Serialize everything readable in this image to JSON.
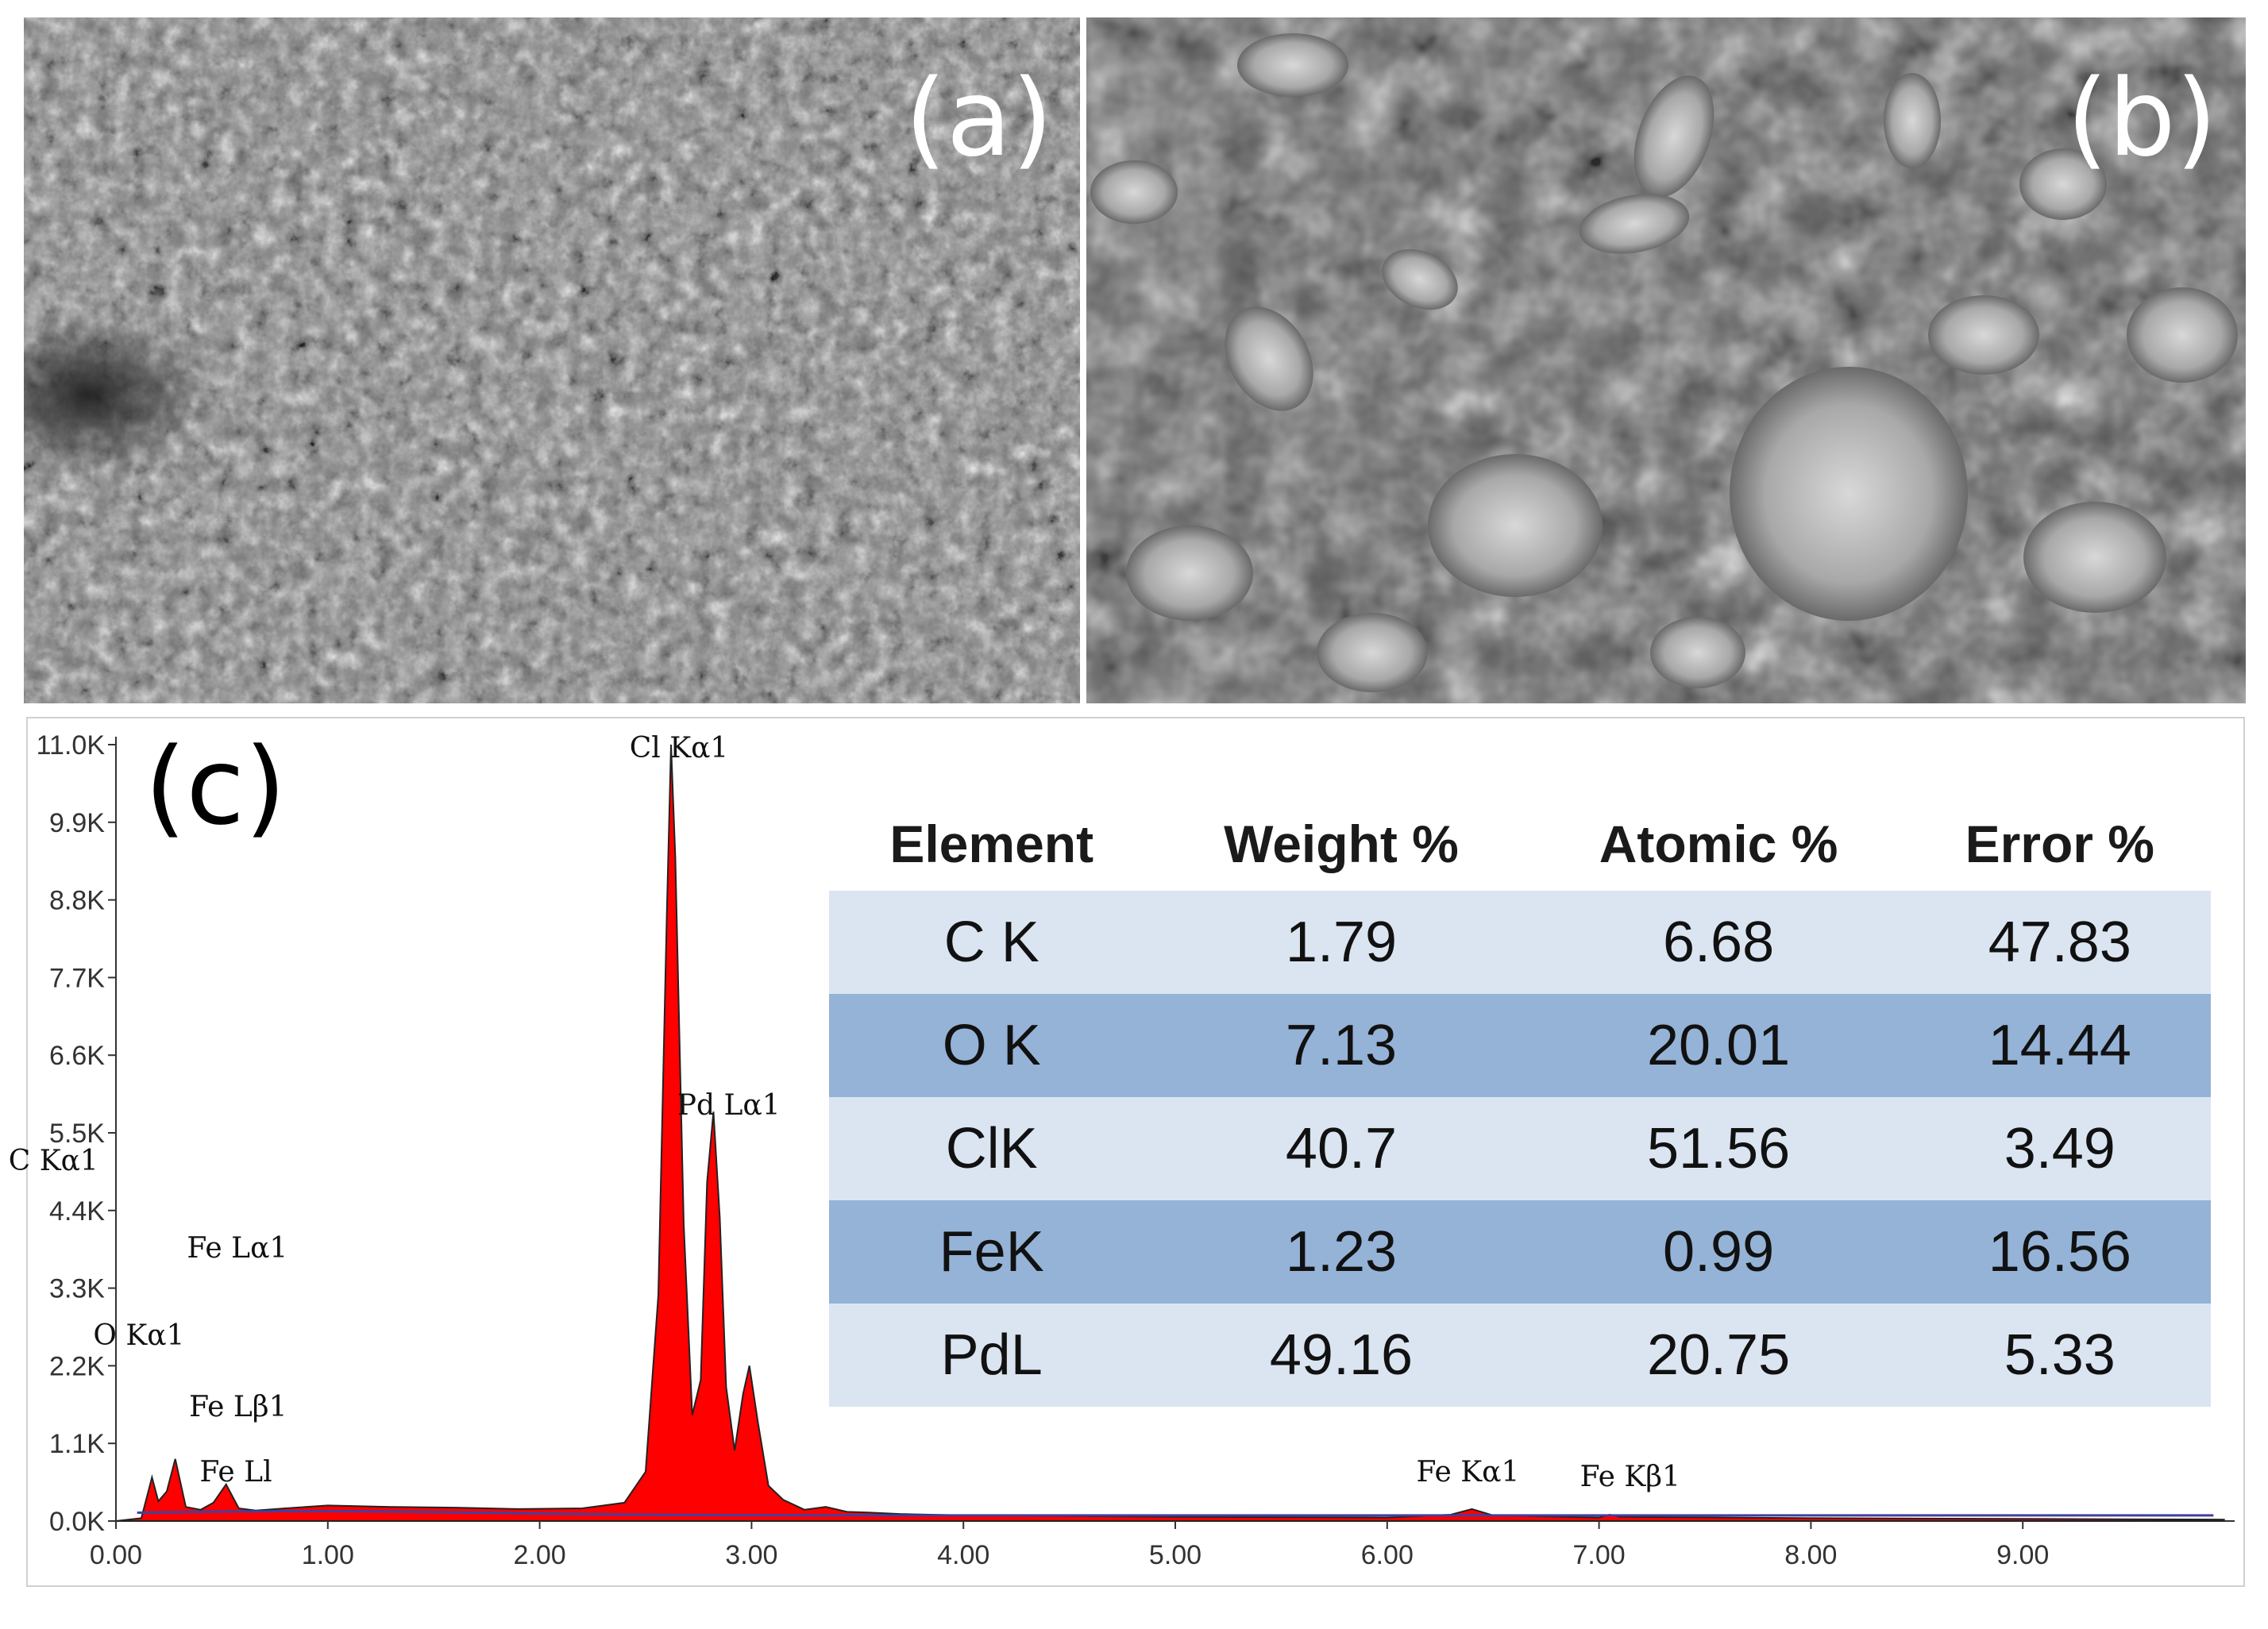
{
  "panels": {
    "a": {
      "label": "(a)"
    },
    "b": {
      "label": "(b)"
    },
    "c": {
      "label": "(c)"
    }
  },
  "chart_data": {
    "type": "area",
    "xlabel": "",
    "ylabel": "",
    "xlim": [
      0,
      10
    ],
    "ylim": [
      0,
      11000
    ],
    "x_ticks": [
      "0.00",
      "1.00",
      "2.00",
      "3.00",
      "4.00",
      "5.00",
      "6.00",
      "7.00",
      "8.00",
      "9.00"
    ],
    "y_ticks": [
      "0.0K",
      "1.1K",
      "2.2K",
      "3.3K",
      "4.4K",
      "5.5K",
      "6.6K",
      "7.7K",
      "8.8K",
      "9.9K",
      "11.0K"
    ],
    "series": [
      {
        "color": "#ff0000",
        "x": [
          0,
          0.12,
          0.17,
          0.2,
          0.24,
          0.28,
          0.33,
          0.4,
          0.46,
          0.52,
          0.58,
          0.66,
          0.8,
          1.0,
          1.3,
          1.6,
          1.9,
          2.2,
          2.4,
          2.5,
          2.56,
          2.6,
          2.62,
          2.64,
          2.68,
          2.72,
          2.76,
          2.79,
          2.82,
          2.85,
          2.88,
          2.92,
          2.96,
          2.99,
          3.03,
          3.08,
          3.15,
          3.25,
          3.35,
          3.45,
          3.55,
          3.7,
          4.0,
          5.0,
          6.0,
          6.3,
          6.4,
          6.5,
          7.0,
          7.05,
          7.1,
          8.0,
          9.0,
          9.95
        ],
        "y": [
          0,
          40,
          620,
          280,
          420,
          880,
          200,
          160,
          260,
          520,
          180,
          150,
          180,
          220,
          200,
          190,
          170,
          180,
          260,
          700,
          3200,
          8600,
          11000,
          9400,
          4200,
          1500,
          2000,
          4800,
          5800,
          4300,
          1900,
          1000,
          1800,
          2200,
          1400,
          500,
          300,
          160,
          200,
          130,
          120,
          100,
          80,
          60,
          50,
          90,
          170,
          80,
          50,
          90,
          60,
          40,
          30,
          20
        ]
      }
    ],
    "annotations": [
      {
        "text": "Cl Kα1",
        "x": 2.62
      },
      {
        "text": "Pd Lα1",
        "x": 2.84
      },
      {
        "text": "C  Kα1",
        "x": 0.28
      },
      {
        "text": "Fe Lα1",
        "x": 0.71
      },
      {
        "text": "O  Kα1",
        "x": 0.53
      },
      {
        "text": "Fe Lβ1",
        "x": 0.72
      },
      {
        "text": "Fe Ll",
        "x": 0.62
      },
      {
        "text": "Fe Kα1",
        "x": 6.4
      },
      {
        "text": "Fe Kβ1",
        "x": 7.06
      }
    ],
    "table": {
      "headers": [
        "Element",
        "Weight %",
        "Atomic %",
        "Error %"
      ],
      "rows": [
        [
          "C K",
          "1.79",
          "6.68",
          "47.83"
        ],
        [
          "O K",
          "7.13",
          "20.01",
          "14.44"
        ],
        [
          "ClK",
          "40.7",
          "51.56",
          "3.49"
        ],
        [
          "FeK",
          "1.23",
          "0.99",
          "16.56"
        ],
        [
          "PdL",
          "49.16",
          "20.75",
          "5.33"
        ]
      ]
    }
  }
}
